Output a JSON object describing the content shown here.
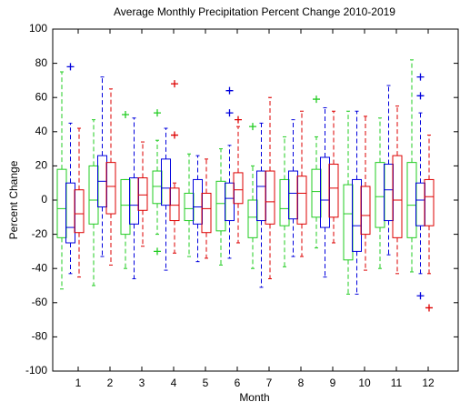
{
  "chart_data": {
    "type": "box",
    "title": "Average Monthly Precipitation Percent Change 2010-2019",
    "x_label": "Month",
    "y_label": "Percent Change",
    "categories": [
      "1",
      "2",
      "3",
      "4",
      "5",
      "6",
      "7",
      "8",
      "9",
      "10",
      "11",
      "12"
    ],
    "ylim": [
      -100,
      100
    ],
    "yticks": [
      -100,
      -80,
      -60,
      -40,
      -20,
      0,
      20,
      40,
      60,
      80,
      100
    ],
    "series": [
      {
        "color": "#22cc22",
        "low": [
          -52,
          -50,
          -40,
          -20,
          -33,
          -38,
          -40,
          -39,
          -28,
          -55,
          -40,
          -42
        ],
        "q1": [
          -22,
          -14,
          -20,
          -2,
          -12,
          -18,
          -22,
          -15,
          -10,
          -35,
          -16,
          -22
        ],
        "median": [
          -5,
          0,
          -3,
          8,
          -5,
          -2,
          -10,
          -5,
          5,
          -8,
          2,
          -3
        ],
        "q3": [
          18,
          20,
          12,
          17,
          4,
          11,
          0,
          12,
          18,
          9,
          22,
          22
        ],
        "high": [
          75,
          47,
          12,
          35,
          27,
          30,
          20,
          37,
          37,
          52,
          48,
          82
        ],
        "outliers": [
          [],
          [],
          [
            50
          ],
          [
            51,
            -30
          ],
          [],
          [],
          [
            43
          ],
          [],
          [
            59
          ],
          [],
          [],
          []
        ]
      },
      {
        "color": "#0000dd",
        "low": [
          -43,
          -33,
          -46,
          -41,
          -36,
          -34,
          -51,
          -33,
          -45,
          -55,
          -32,
          -43
        ],
        "q1": [
          -25,
          -4,
          -14,
          -3,
          -14,
          -12,
          -12,
          -11,
          -16,
          -30,
          -12,
          -15
        ],
        "median": [
          -16,
          11,
          -3,
          7,
          -4,
          1,
          8,
          4,
          0,
          -15,
          6,
          0
        ],
        "q3": [
          10,
          26,
          13,
          24,
          12,
          10,
          17,
          17,
          25,
          12,
          21,
          10
        ],
        "high": [
          45,
          72,
          48,
          42,
          26,
          32,
          45,
          47,
          54,
          52,
          67,
          51
        ],
        "outliers": [
          [
            78
          ],
          [],
          [],
          [],
          [],
          [
            64,
            51
          ],
          [],
          [],
          [],
          [],
          [],
          [
            72,
            61,
            -56
          ]
        ]
      },
      {
        "color": "#dd0000",
        "low": [
          -45,
          -38,
          -27,
          -31,
          -34,
          -25,
          -46,
          -33,
          -25,
          -41,
          -43,
          -43
        ],
        "q1": [
          -19,
          -8,
          -6,
          -12,
          -19,
          -2,
          -14,
          -14,
          -10,
          -20,
          -22,
          -15
        ],
        "median": [
          -8,
          8,
          3,
          -3,
          -5,
          6,
          -1,
          4,
          7,
          -9,
          0,
          2
        ],
        "q3": [
          6,
          22,
          13,
          7,
          4,
          16,
          17,
          14,
          21,
          8,
          26,
          12
        ],
        "high": [
          42,
          65,
          34,
          10,
          24,
          43,
          60,
          52,
          52,
          49,
          55,
          38
        ],
        "outliers": [
          [],
          [],
          [],
          [
            68,
            38
          ],
          [],
          [
            47
          ],
          [],
          [],
          [],
          [],
          [],
          [
            -63
          ]
        ]
      }
    ]
  }
}
